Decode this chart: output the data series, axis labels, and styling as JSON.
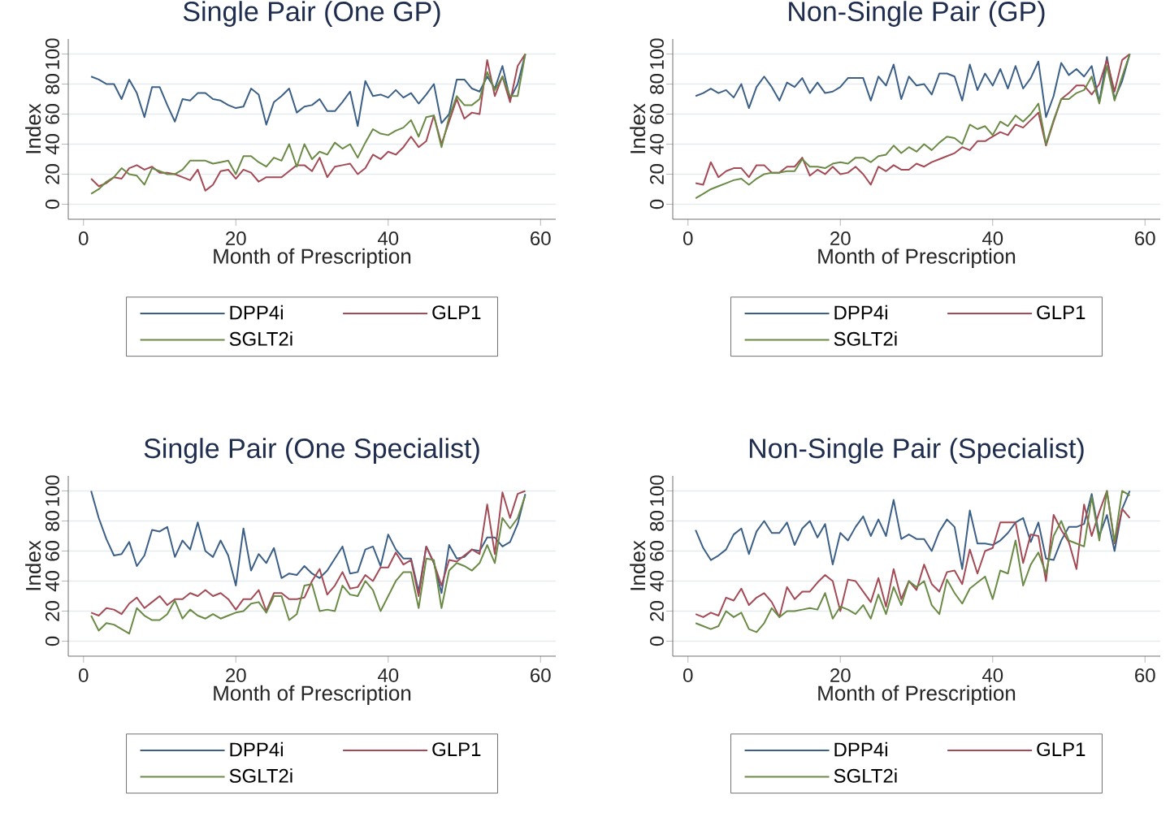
{
  "chart_data": [
    {
      "type": "line",
      "title": "Single Pair (One GP)",
      "xlabel": "Month of Prescription",
      "ylabel": "Index",
      "xlim": [
        -2,
        62
      ],
      "ylim": [
        -10,
        110
      ],
      "xticks": [
        0,
        20,
        40,
        60
      ],
      "yticks": [
        0,
        20,
        40,
        60,
        80,
        100
      ],
      "grid": "y",
      "legend": "bottom",
      "x": [
        1,
        2,
        3,
        4,
        5,
        6,
        7,
        8,
        9,
        10,
        11,
        12,
        13,
        14,
        15,
        16,
        17,
        18,
        19,
        20,
        21,
        22,
        23,
        24,
        25,
        26,
        27,
        28,
        29,
        30,
        31,
        32,
        33,
        34,
        35,
        36,
        37,
        38,
        39,
        40,
        41,
        42,
        43,
        44,
        45,
        46,
        47,
        48,
        49,
        50,
        51,
        52,
        53,
        54,
        55,
        56,
        57,
        58
      ],
      "series": [
        {
          "name": "DPP4i",
          "color": "#3b5f87",
          "values": [
            85,
            83,
            80,
            80,
            70,
            83,
            74,
            58,
            78,
            78,
            66,
            55,
            70,
            69,
            74,
            74,
            70,
            69,
            66,
            64,
            65,
            77,
            73,
            53,
            68,
            72,
            77,
            61,
            65,
            66,
            70,
            62,
            62,
            68,
            75,
            52,
            82,
            72,
            73,
            71,
            76,
            71,
            74,
            67,
            73,
            80,
            54,
            60,
            83,
            83,
            77,
            75,
            85,
            77,
            92,
            70,
            80,
            100
          ]
        },
        {
          "name": "GLP1",
          "color": "#a34a55",
          "values": [
            17,
            12,
            14,
            18,
            17,
            24,
            26,
            23,
            25,
            21,
            21,
            20,
            18,
            16,
            23,
            9,
            13,
            22,
            23,
            17,
            23,
            21,
            15,
            18,
            18,
            18,
            22,
            26,
            26,
            22,
            31,
            18,
            25,
            26,
            27,
            20,
            24,
            33,
            30,
            35,
            33,
            38,
            45,
            38,
            42,
            59,
            40,
            55,
            70,
            57,
            61,
            60,
            96,
            72,
            85,
            68,
            92,
            100
          ]
        },
        {
          "name": "SGLT2i",
          "color": "#6a8a45",
          "values": [
            7,
            10,
            15,
            18,
            24,
            20,
            19,
            13,
            24,
            22,
            20,
            20,
            23,
            29,
            29,
            29,
            27,
            28,
            29,
            20,
            32,
            32,
            28,
            25,
            31,
            29,
            40,
            25,
            40,
            30,
            35,
            33,
            41,
            37,
            40,
            31,
            41,
            50,
            47,
            46,
            49,
            51,
            56,
            45,
            58,
            59,
            38,
            58,
            72,
            66,
            66,
            70,
            88,
            76,
            85,
            72,
            72,
            100
          ]
        }
      ]
    },
    {
      "type": "line",
      "title": "Non-Single Pair (GP)",
      "xlabel": "Month of Prescription",
      "ylabel": "Index",
      "xlim": [
        -2,
        62
      ],
      "ylim": [
        -10,
        110
      ],
      "xticks": [
        0,
        20,
        40,
        60
      ],
      "yticks": [
        0,
        20,
        40,
        60,
        80,
        100
      ],
      "grid": "y",
      "legend": "bottom",
      "x": [
        1,
        2,
        3,
        4,
        5,
        6,
        7,
        8,
        9,
        10,
        11,
        12,
        13,
        14,
        15,
        16,
        17,
        18,
        19,
        20,
        21,
        22,
        23,
        24,
        25,
        26,
        27,
        28,
        29,
        30,
        31,
        32,
        33,
        34,
        35,
        36,
        37,
        38,
        39,
        40,
        41,
        42,
        43,
        44,
        45,
        46,
        47,
        48,
        49,
        50,
        51,
        52,
        53,
        54,
        55,
        56,
        57,
        58
      ],
      "series": [
        {
          "name": "DPP4i",
          "color": "#3b5f87",
          "values": [
            72,
            74,
            77,
            74,
            76,
            71,
            80,
            64,
            78,
            85,
            78,
            69,
            81,
            78,
            84,
            74,
            81,
            74,
            75,
            78,
            84,
            84,
            84,
            69,
            85,
            79,
            93,
            70,
            85,
            79,
            80,
            73,
            87,
            87,
            85,
            69,
            93,
            76,
            87,
            79,
            90,
            77,
            92,
            77,
            84,
            95,
            58,
            72,
            94,
            86,
            90,
            85,
            92,
            68,
            98,
            70,
            82,
            100
          ]
        },
        {
          "name": "GLP1",
          "color": "#a34a55",
          "values": [
            14,
            13,
            28,
            18,
            22,
            24,
            24,
            18,
            26,
            26,
            21,
            21,
            25,
            25,
            31,
            19,
            23,
            20,
            25,
            20,
            21,
            25,
            20,
            13,
            25,
            22,
            26,
            23,
            23,
            27,
            25,
            28,
            30,
            32,
            34,
            38,
            36,
            42,
            42,
            45,
            48,
            46,
            53,
            51,
            56,
            61,
            39,
            55,
            70,
            74,
            79,
            79,
            73,
            80,
            96,
            75,
            96,
            100
          ]
        },
        {
          "name": "SGLT2i",
          "color": "#6a8a45",
          "values": [
            4,
            7,
            10,
            12,
            14,
            16,
            17,
            13,
            17,
            20,
            21,
            21,
            22,
            22,
            30,
            25,
            25,
            24,
            27,
            28,
            27,
            31,
            31,
            28,
            32,
            33,
            39,
            34,
            38,
            35,
            40,
            36,
            41,
            45,
            44,
            40,
            53,
            50,
            52,
            46,
            55,
            52,
            59,
            55,
            60,
            67,
            40,
            56,
            70,
            70,
            74,
            76,
            85,
            67,
            92,
            69,
            85,
            100
          ]
        }
      ]
    },
    {
      "type": "line",
      "title": "Single Pair (One Specialist)",
      "xlabel": "Month of Prescription",
      "ylabel": "Index",
      "xlim": [
        -2,
        62
      ],
      "ylim": [
        -10,
        110
      ],
      "xticks": [
        0,
        20,
        40,
        60
      ],
      "yticks": [
        0,
        20,
        40,
        60,
        80,
        100
      ],
      "grid": "y",
      "legend": "bottom",
      "x": [
        1,
        2,
        3,
        4,
        5,
        6,
        7,
        8,
        9,
        10,
        11,
        12,
        13,
        14,
        15,
        16,
        17,
        18,
        19,
        20,
        21,
        22,
        23,
        24,
        25,
        26,
        27,
        28,
        29,
        30,
        31,
        32,
        33,
        34,
        35,
        36,
        37,
        38,
        39,
        40,
        41,
        42,
        43,
        44,
        45,
        46,
        47,
        48,
        49,
        50,
        51,
        52,
        53,
        54,
        55,
        56,
        57,
        58
      ],
      "series": [
        {
          "name": "DPP4i",
          "color": "#3b5f87",
          "values": [
            100,
            82,
            68,
            57,
            58,
            66,
            50,
            57,
            74,
            73,
            76,
            56,
            67,
            61,
            79,
            60,
            56,
            67,
            57,
            37,
            75,
            47,
            58,
            52,
            62,
            42,
            45,
            44,
            50,
            45,
            42,
            47,
            55,
            63,
            45,
            46,
            61,
            63,
            50,
            71,
            61,
            55,
            55,
            33,
            63,
            52,
            32,
            64,
            55,
            56,
            61,
            60,
            69,
            69,
            63,
            66,
            78,
            98
          ]
        },
        {
          "name": "GLP1",
          "color": "#a34a55",
          "values": [
            19,
            17,
            22,
            21,
            18,
            25,
            29,
            22,
            26,
            30,
            24,
            28,
            28,
            32,
            30,
            34,
            30,
            32,
            28,
            21,
            28,
            28,
            34,
            20,
            32,
            32,
            28,
            28,
            29,
            40,
            48,
            31,
            37,
            46,
            35,
            36,
            44,
            40,
            49,
            49,
            59,
            51,
            54,
            30,
            63,
            52,
            37,
            54,
            53,
            57,
            61,
            58,
            91,
            58,
            99,
            82,
            98,
            100
          ]
        },
        {
          "name": "SGLT2i",
          "color": "#6a8a45",
          "values": [
            17,
            7,
            12,
            11,
            8,
            5,
            22,
            17,
            14,
            14,
            18,
            27,
            15,
            21,
            17,
            15,
            18,
            15,
            17,
            19,
            20,
            25,
            26,
            19,
            30,
            30,
            14,
            18,
            37,
            38,
            20,
            21,
            20,
            37,
            31,
            30,
            40,
            34,
            20,
            30,
            40,
            46,
            46,
            22,
            55,
            54,
            22,
            47,
            52,
            50,
            47,
            52,
            64,
            52,
            82,
            75,
            82,
            97
          ]
        }
      ]
    },
    {
      "type": "line",
      "title": "Non-Single Pair (Specialist)",
      "xlabel": "Month of Prescription",
      "ylabel": "Index",
      "xlim": [
        -2,
        62
      ],
      "ylim": [
        -10,
        110
      ],
      "xticks": [
        0,
        20,
        40,
        60
      ],
      "yticks": [
        0,
        20,
        40,
        60,
        80,
        100
      ],
      "grid": "y",
      "legend": "bottom",
      "x": [
        1,
        2,
        3,
        4,
        5,
        6,
        7,
        8,
        9,
        10,
        11,
        12,
        13,
        14,
        15,
        16,
        17,
        18,
        19,
        20,
        21,
        22,
        23,
        24,
        25,
        26,
        27,
        28,
        29,
        30,
        31,
        32,
        33,
        34,
        35,
        36,
        37,
        38,
        39,
        40,
        41,
        42,
        43,
        44,
        45,
        46,
        47,
        48,
        49,
        50,
        51,
        52,
        53,
        54,
        55,
        56,
        57,
        58
      ],
      "series": [
        {
          "name": "DPP4i",
          "color": "#3b5f87",
          "values": [
            74,
            62,
            54,
            57,
            61,
            71,
            75,
            58,
            73,
            80,
            72,
            72,
            79,
            64,
            75,
            80,
            69,
            78,
            51,
            72,
            67,
            76,
            83,
            70,
            81,
            70,
            94,
            68,
            71,
            68,
            68,
            60,
            73,
            81,
            76,
            48,
            87,
            65,
            65,
            64,
            67,
            72,
            79,
            82,
            66,
            79,
            55,
            54,
            67,
            76,
            76,
            78,
            98,
            70,
            84,
            60,
            88,
            100
          ]
        },
        {
          "name": "GLP1",
          "color": "#a34a55",
          "values": [
            18,
            16,
            19,
            17,
            29,
            27,
            35,
            24,
            29,
            32,
            26,
            16,
            36,
            28,
            33,
            33,
            39,
            44,
            40,
            20,
            41,
            40,
            33,
            26,
            42,
            23,
            48,
            28,
            40,
            34,
            51,
            38,
            33,
            46,
            47,
            38,
            61,
            45,
            60,
            62,
            79,
            79,
            79,
            52,
            71,
            70,
            40,
            84,
            74,
            66,
            48,
            91,
            70,
            86,
            100,
            65,
            88,
            82
          ]
        },
        {
          "name": "SGLT2i",
          "color": "#6a8a45",
          "values": [
            12,
            10,
            8,
            10,
            20,
            16,
            19,
            8,
            6,
            12,
            22,
            16,
            20,
            20,
            21,
            22,
            21,
            32,
            15,
            23,
            21,
            18,
            24,
            15,
            31,
            18,
            36,
            24,
            40,
            36,
            40,
            24,
            18,
            41,
            32,
            25,
            35,
            39,
            43,
            28,
            47,
            45,
            67,
            37,
            51,
            59,
            45,
            70,
            80,
            67,
            65,
            63,
            96,
            67,
            100,
            66,
            100,
            97
          ]
        }
      ]
    }
  ]
}
